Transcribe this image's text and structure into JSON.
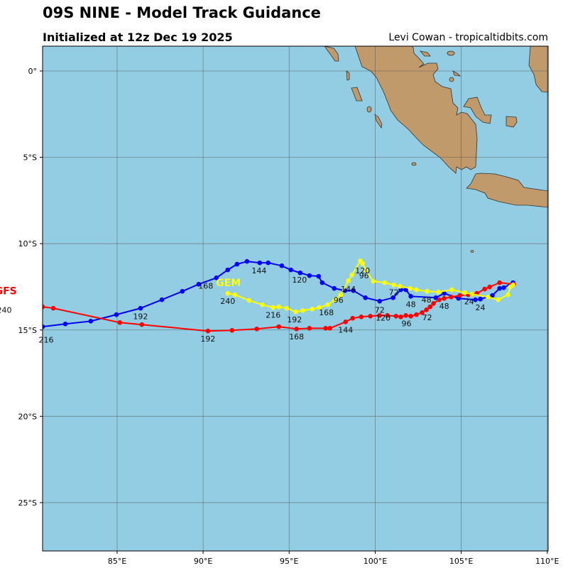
{
  "header": {
    "title": "09S NINE - Model Track Guidance",
    "subtitle": "Initialized at 12z Dec 19 2025",
    "credit": "Levi Cowan - tropicaltidbits.com"
  },
  "map": {
    "ocean_color": "#93cde3",
    "land_color": "#c09a6b",
    "lon_range": [
      80.67,
      110.05
    ],
    "lat_range": [
      -27.8,
      1.44
    ],
    "lon_ticks": [
      {
        "v": 85,
        "label": "85°E"
      },
      {
        "v": 90,
        "label": "90°E"
      },
      {
        "v": 95,
        "label": "95°E"
      },
      {
        "v": 100,
        "label": "100°E"
      },
      {
        "v": 105,
        "label": "105°E"
      },
      {
        "v": 110,
        "label": "110°E"
      }
    ],
    "lat_ticks": [
      {
        "v": 0,
        "label": "0°"
      },
      {
        "v": -5,
        "label": "5°S"
      },
      {
        "v": -10,
        "label": "10°S"
      },
      {
        "v": -15,
        "label": "15°S"
      },
      {
        "v": -20,
        "label": "20°S"
      },
      {
        "v": -25,
        "label": "25°S"
      }
    ]
  },
  "tracks": [
    {
      "name": "Blue model",
      "color": "#0000ff",
      "points": [
        [
          108.01,
          -12.26
        ],
        [
          107.47,
          -12.55
        ],
        [
          107.23,
          -12.59
        ],
        [
          106.81,
          -13.0
        ],
        [
          106.11,
          -13.21
        ],
        [
          105.82,
          -13.25
        ],
        [
          104.84,
          -13.17
        ],
        [
          104.01,
          -12.88
        ],
        [
          103.52,
          -13.13
        ],
        [
          102.07,
          -13.05
        ],
        [
          101.78,
          -12.67
        ],
        [
          101.49,
          -12.67
        ],
        [
          101.04,
          -13.13
        ],
        [
          100.26,
          -13.33
        ],
        [
          99.43,
          -13.13
        ],
        [
          98.73,
          -12.72
        ],
        [
          98.24,
          -12.72
        ],
        [
          97.62,
          -12.59
        ],
        [
          96.92,
          -12.26
        ],
        [
          96.71,
          -11.89
        ],
        [
          96.18,
          -11.85
        ],
        [
          95.64,
          -11.69
        ],
        [
          95.1,
          -11.52
        ],
        [
          94.57,
          -11.28
        ],
        [
          93.78,
          -11.11
        ],
        [
          93.29,
          -11.11
        ],
        [
          92.55,
          -11.03
        ],
        [
          91.97,
          -11.19
        ],
        [
          91.43,
          -11.52
        ],
        [
          90.77,
          -11.98
        ],
        [
          89.74,
          -12.35
        ],
        [
          88.79,
          -12.76
        ],
        [
          87.6,
          -13.25
        ],
        [
          86.36,
          -13.74
        ],
        [
          84.96,
          -14.11
        ],
        [
          83.47,
          -14.49
        ],
        [
          81.99,
          -14.65
        ],
        [
          80.67,
          -14.81
        ]
      ]
    },
    {
      "name": "GFS",
      "color": "#ff0000",
      "points": [
        [
          108.05,
          -12.35
        ],
        [
          107.23,
          -12.26
        ],
        [
          106.65,
          -12.51
        ],
        [
          106.36,
          -12.63
        ],
        [
          105.91,
          -12.88
        ],
        [
          105.41,
          -12.96
        ],
        [
          104.92,
          -13.0
        ],
        [
          104.42,
          -13.09
        ],
        [
          104.01,
          -13.17
        ],
        [
          103.72,
          -13.25
        ],
        [
          103.39,
          -13.46
        ],
        [
          103.19,
          -13.66
        ],
        [
          102.98,
          -13.83
        ],
        [
          102.73,
          -13.99
        ],
        [
          102.4,
          -14.11
        ],
        [
          102.07,
          -14.2
        ],
        [
          101.78,
          -14.16
        ],
        [
          101.49,
          -14.24
        ],
        [
          101.21,
          -14.2
        ],
        [
          100.71,
          -14.16
        ],
        [
          100.26,
          -14.16
        ],
        [
          99.72,
          -14.2
        ],
        [
          99.19,
          -14.24
        ],
        [
          98.69,
          -14.32
        ],
        [
          98.28,
          -14.53
        ],
        [
          97.37,
          -14.9
        ],
        [
          97.12,
          -14.9
        ],
        [
          96.18,
          -14.9
        ],
        [
          95.43,
          -14.94
        ],
        [
          94.4,
          -14.81
        ],
        [
          93.12,
          -14.94
        ],
        [
          91.68,
          -15.02
        ],
        [
          90.28,
          -15.06
        ],
        [
          86.44,
          -14.69
        ],
        [
          85.16,
          -14.57
        ],
        [
          81.29,
          -13.74
        ],
        [
          80.67,
          -13.66
        ]
      ]
    },
    {
      "name": "GEM",
      "color": "#ffff00",
      "points": [
        [
          108.01,
          -12.39
        ],
        [
          107.85,
          -12.51
        ],
        [
          107.72,
          -12.96
        ],
        [
          107.14,
          -13.25
        ],
        [
          106.57,
          -13.09
        ],
        [
          105.62,
          -12.92
        ],
        [
          105.21,
          -12.84
        ],
        [
          104.46,
          -12.67
        ],
        [
          103.68,
          -12.8
        ],
        [
          103.02,
          -12.76
        ],
        [
          102.4,
          -12.67
        ],
        [
          102.03,
          -12.59
        ],
        [
          101.45,
          -12.47
        ],
        [
          101.08,
          -12.39
        ],
        [
          100.55,
          -12.26
        ],
        [
          99.89,
          -12.18
        ],
        [
          99.43,
          -11.52
        ],
        [
          99.27,
          -11.15
        ],
        [
          99.14,
          -10.99
        ],
        [
          98.65,
          -11.81
        ],
        [
          98.44,
          -12.14
        ],
        [
          97.99,
          -12.96
        ],
        [
          97.66,
          -13.25
        ],
        [
          97.25,
          -13.54
        ],
        [
          96.75,
          -13.7
        ],
        [
          96.34,
          -13.79
        ],
        [
          95.8,
          -13.87
        ],
        [
          95.39,
          -13.95
        ],
        [
          94.86,
          -13.74
        ],
        [
          94.4,
          -13.66
        ],
        [
          94.07,
          -13.7
        ],
        [
          93.45,
          -13.54
        ],
        [
          92.67,
          -13.29
        ],
        [
          91.85,
          -12.96
        ],
        [
          91.43,
          -12.88
        ]
      ]
    }
  ],
  "model_labels": [
    {
      "text": "GEM",
      "color": "#ffff00",
      "lon": 91.47,
      "lat": -12.26
    },
    {
      "text": "GFS",
      "color": "#ff0000",
      "lon": 78.53,
      "lat": -12.72
    }
  ],
  "hour_labels": [
    {
      "text": "24",
      "lon": 105.87,
      "lat": -13.5
    },
    {
      "text": "24",
      "lon": 106.11,
      "lat": -13.7
    },
    {
      "text": "48",
      "lon": 102.98,
      "lat": -13.25
    },
    {
      "text": "48",
      "lon": 104.01,
      "lat": -13.62
    },
    {
      "text": "48",
      "lon": 102.07,
      "lat": -13.5
    },
    {
      "text": "72",
      "lon": 101.08,
      "lat": -12.8
    },
    {
      "text": "72",
      "lon": 100.26,
      "lat": -13.83
    },
    {
      "text": "72",
      "lon": 103.02,
      "lat": -14.28
    },
    {
      "text": "96",
      "lon": 101.82,
      "lat": -14.61
    },
    {
      "text": "96",
      "lon": 97.62,
      "lat": -13.09
    },
    {
      "text": "96",
      "lon": 99.35,
      "lat": -11.85
    },
    {
      "text": "120",
      "lon": 100.46,
      "lat": -14.61
    },
    {
      "text": "120",
      "lon": 99.27,
      "lat": -11.56
    },
    {
      "text": "120",
      "lon": 95.6,
      "lat": -12.1
    },
    {
      "text": "144",
      "lon": 98.44,
      "lat": -12.63
    },
    {
      "text": "144",
      "lon": 98.28,
      "lat": -14.98
    },
    {
      "text": "144",
      "lon": 93.25,
      "lat": -11.56
    },
    {
      "text": "168",
      "lon": 95.43,
      "lat": -15.39
    },
    {
      "text": "168",
      "lon": 97.16,
      "lat": -13.99
    },
    {
      "text": "168",
      "lon": 90.73,
      "lat": -12.43
    },
    {
      "text": "192",
      "lon": 95.31,
      "lat": -14.4
    },
    {
      "text": "192",
      "lon": 90.28,
      "lat": -15.51
    },
    {
      "text": "192",
      "lon": 86.36,
      "lat": -14.2
    },
    {
      "text": "216",
      "lon": 94.07,
      "lat": -14.12
    },
    {
      "text": "216",
      "lon": 80.63,
      "lat": -15.27
    },
    {
      "text": "240",
      "lon": 91.43,
      "lat": -13.33
    },
    {
      "text": "240",
      "lon": 78.44,
      "lat": -13.83
    }
  ]
}
